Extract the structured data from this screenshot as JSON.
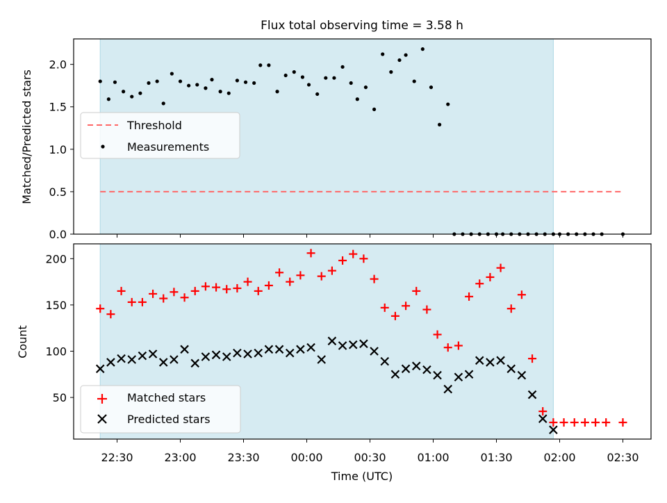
{
  "chart_data": [
    {
      "type": "scatter",
      "title": "Flux total observing time = 3.58 h",
      "xlabel": "",
      "ylabel": "Matched/Predicted stars",
      "ylim": [
        0,
        2.3
      ],
      "yticks": [
        "0.0",
        "0.5",
        "1.0",
        "1.5",
        "2.0"
      ],
      "shaded_span": [
        "22:22",
        "01:57"
      ],
      "shaded_color": "#add8e6",
      "legend_placement": "center-left",
      "threshold": {
        "name": "Threshold",
        "value": 0.5,
        "x_range": [
          "22:22",
          "02:30"
        ],
        "color": "#ff6666"
      },
      "series": [
        {
          "name": "Measurements",
          "color": "#000000",
          "marker": "dot",
          "x": [
            "22:22",
            "22:26",
            "22:29",
            "22:33",
            "22:37",
            "22:41",
            "22:45",
            "22:49",
            "22:52",
            "22:56",
            "23:00",
            "23:04",
            "23:08",
            "23:12",
            "23:15",
            "23:19",
            "23:23",
            "23:27",
            "23:31",
            "23:35",
            "23:38",
            "23:42",
            "23:46",
            "23:50",
            "23:54",
            "23:58",
            "00:01",
            "00:05",
            "00:09",
            "00:13",
            "00:17",
            "00:21",
            "00:24",
            "00:28",
            "00:32",
            "00:36",
            "00:40",
            "00:44",
            "00:47",
            "00:51",
            "00:55",
            "00:59",
            "01:03",
            "01:07",
            "01:10",
            "01:14",
            "01:18",
            "01:22",
            "01:26",
            "01:30",
            "01:33",
            "01:37",
            "01:41",
            "01:45",
            "01:49",
            "01:53",
            "01:57",
            "02:00",
            "02:04",
            "02:08",
            "02:12",
            "02:16",
            "02:20",
            "02:30"
          ],
          "values": [
            1.8,
            1.59,
            1.79,
            1.68,
            1.62,
            1.66,
            1.78,
            1.8,
            1.54,
            1.89,
            1.8,
            1.75,
            1.76,
            1.72,
            1.82,
            1.68,
            1.66,
            1.81,
            1.79,
            1.78,
            1.99,
            1.99,
            1.68,
            1.87,
            1.91,
            1.85,
            1.76,
            1.65,
            1.84,
            1.84,
            1.97,
            1.78,
            1.59,
            1.73,
            1.47,
            2.12,
            1.91,
            2.05,
            2.11,
            1.8,
            2.18,
            1.73,
            1.29,
            1.53,
            0,
            0,
            0,
            0,
            0,
            0,
            0,
            0,
            0,
            0,
            0,
            0,
            0,
            0,
            0,
            0,
            0,
            0,
            0,
            0
          ]
        }
      ]
    },
    {
      "type": "scatter",
      "title": "",
      "xlabel": "Time (UTC)",
      "ylabel": "Count",
      "ylim": [
        5,
        216
      ],
      "yticks": [
        "50",
        "100",
        "150",
        "200"
      ],
      "xticks": [
        "22:30",
        "23:00",
        "23:30",
        "00:00",
        "00:30",
        "01:00",
        "01:30",
        "02:00",
        "02:30"
      ],
      "shaded_span": [
        "22:22",
        "01:57"
      ],
      "legend_placement": "lower-left",
      "series": [
        {
          "name": "Matched stars",
          "color": "#ff0000",
          "marker": "plus",
          "x": [
            "22:22",
            "22:27",
            "22:32",
            "22:37",
            "22:42",
            "22:47",
            "22:52",
            "22:57",
            "23:02",
            "23:07",
            "23:12",
            "23:17",
            "23:22",
            "23:27",
            "23:32",
            "23:37",
            "23:42",
            "23:47",
            "23:52",
            "23:57",
            "00:02",
            "00:07",
            "00:12",
            "00:17",
            "00:22",
            "00:27",
            "00:32",
            "00:37",
            "00:42",
            "00:47",
            "00:52",
            "00:57",
            "01:02",
            "01:07",
            "01:12",
            "01:17",
            "01:22",
            "01:27",
            "01:32",
            "01:37",
            "01:42",
            "01:47",
            "01:52",
            "01:57",
            "02:02",
            "02:07",
            "02:12",
            "02:17",
            "02:22",
            "02:30"
          ],
          "values": [
            146,
            140,
            165,
            153,
            153,
            162,
            157,
            164,
            158,
            165,
            170,
            169,
            167,
            168,
            175,
            165,
            171,
            185,
            175,
            182,
            206,
            181,
            187,
            198,
            205,
            200,
            178,
            147,
            138,
            149,
            165,
            145,
            118,
            104,
            106,
            159,
            173,
            180,
            190,
            146,
            161,
            92,
            35,
            23,
            23,
            23,
            23,
            23,
            23,
            23
          ]
        },
        {
          "name": "Predicted stars",
          "color": "#000000",
          "marker": "x",
          "x": [
            "22:22",
            "22:27",
            "22:32",
            "22:37",
            "22:42",
            "22:47",
            "22:52",
            "22:57",
            "23:02",
            "23:07",
            "23:12",
            "23:17",
            "23:22",
            "23:27",
            "23:32",
            "23:37",
            "23:42",
            "23:47",
            "23:52",
            "23:57",
            "00:02",
            "00:07",
            "00:12",
            "00:17",
            "00:22",
            "00:27",
            "00:32",
            "00:37",
            "00:42",
            "00:47",
            "00:52",
            "00:57",
            "01:02",
            "01:07",
            "01:12",
            "01:17",
            "01:22",
            "01:27",
            "01:32",
            "01:37",
            "01:42",
            "01:47",
            "01:52",
            "01:57"
          ],
          "values": [
            81,
            88,
            92,
            91,
            95,
            97,
            88,
            91,
            102,
            87,
            94,
            96,
            94,
            98,
            97,
            98,
            102,
            102,
            98,
            102,
            104,
            91,
            111,
            106,
            107,
            108,
            100,
            89,
            75,
            81,
            84,
            80,
            74,
            59,
            72,
            75,
            90,
            88,
            90,
            81,
            74,
            53,
            27,
            15
          ]
        }
      ]
    }
  ]
}
